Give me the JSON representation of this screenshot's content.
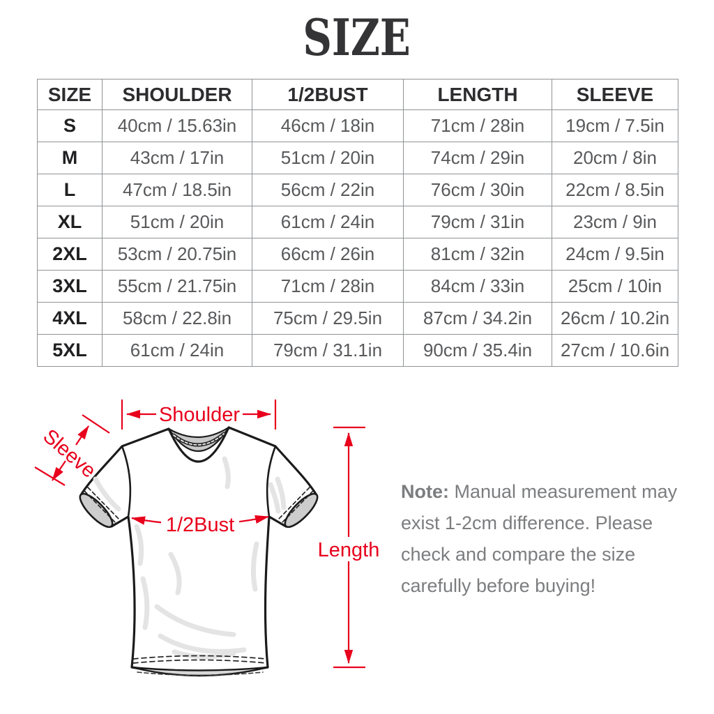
{
  "page_title": "SIZE",
  "size_chart": {
    "columns": [
      "SIZE",
      "SHOULDER",
      "1/2BUST",
      "LENGTH",
      "SLEEVE"
    ],
    "rows": [
      [
        "S",
        "40cm / 15.63in",
        "46cm / 18in",
        "71cm / 28in",
        "19cm / 7.5in"
      ],
      [
        "M",
        "43cm / 17in",
        "51cm / 20in",
        "74cm / 29in",
        "20cm / 8in"
      ],
      [
        "L",
        "47cm / 18.5in",
        "56cm / 22in",
        "76cm / 30in",
        "22cm / 8.5in"
      ],
      [
        "XL",
        "51cm / 20in",
        "61cm / 24in",
        "79cm / 31in",
        "23cm / 9in"
      ],
      [
        "2XL",
        "53cm / 20.75in",
        "66cm / 26in",
        "81cm / 32in",
        "24cm / 9.5in"
      ],
      [
        "3XL",
        "55cm / 21.75in",
        "71cm / 28in",
        "84cm / 33in",
        "25cm / 10in"
      ],
      [
        "4XL",
        "58cm / 22.8in",
        "75cm / 29.5in",
        "87cm / 34.2in",
        "26cm / 10.2in"
      ],
      [
        "5XL",
        "61cm / 24in",
        "79cm / 31.1in",
        "90cm / 35.4in",
        "27cm / 10.6in"
      ]
    ]
  },
  "diagram": {
    "labels": {
      "shoulder": "Shoulder",
      "sleeve": "Sleeve",
      "half_bust": "1/2Bust",
      "length": "Length"
    },
    "annotation_color": "#e8001c"
  },
  "note": {
    "label": "Note:",
    "line1": " Manual measurement may",
    "line2": "exist 1-2cm difference. Please",
    "line3": "check and compare the size",
    "line4": "carefully before buying!"
  }
}
